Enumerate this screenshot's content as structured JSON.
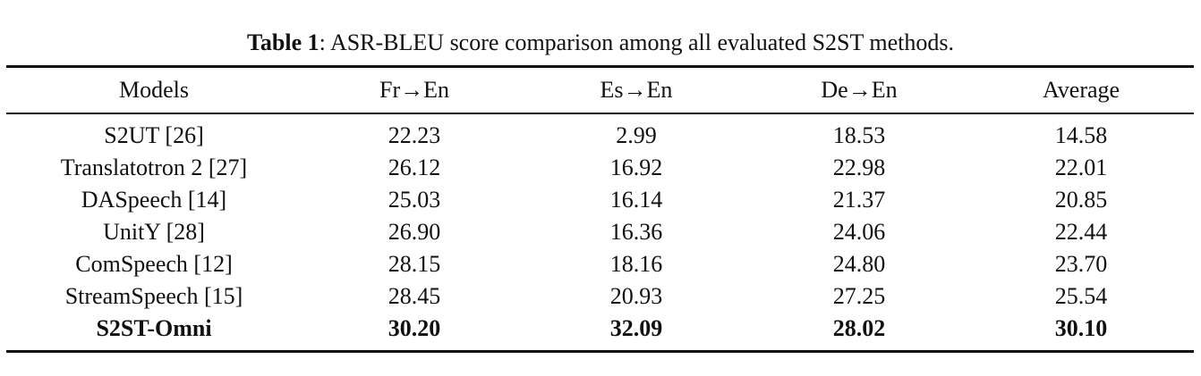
{
  "caption": {
    "label": "Table 1",
    "text": ": ASR-BLEU score comparison among all evaluated S2ST methods."
  },
  "table": {
    "header": [
      "Models",
      "Fr→En",
      "Es→En",
      "De→En",
      "Average"
    ],
    "rows": [
      [
        "S2UT [26]",
        "22.23",
        "2.99",
        "18.53",
        "14.58"
      ],
      [
        "Translatotron 2 [27]",
        "26.12",
        "16.92",
        "22.98",
        "22.01"
      ],
      [
        "DASpeech [14]",
        "25.03",
        "16.14",
        "21.37",
        "20.85"
      ],
      [
        "UnitY [28]",
        "26.90",
        "16.36",
        "24.06",
        "22.44"
      ],
      [
        "ComSpeech [12]",
        "28.15",
        "18.16",
        "24.80",
        "23.70"
      ],
      [
        "StreamSpeech [15]",
        "28.45",
        "20.93",
        "27.25",
        "25.54"
      ],
      [
        "S2ST-Omni",
        "30.20",
        "32.09",
        "28.02",
        "30.10"
      ]
    ]
  }
}
